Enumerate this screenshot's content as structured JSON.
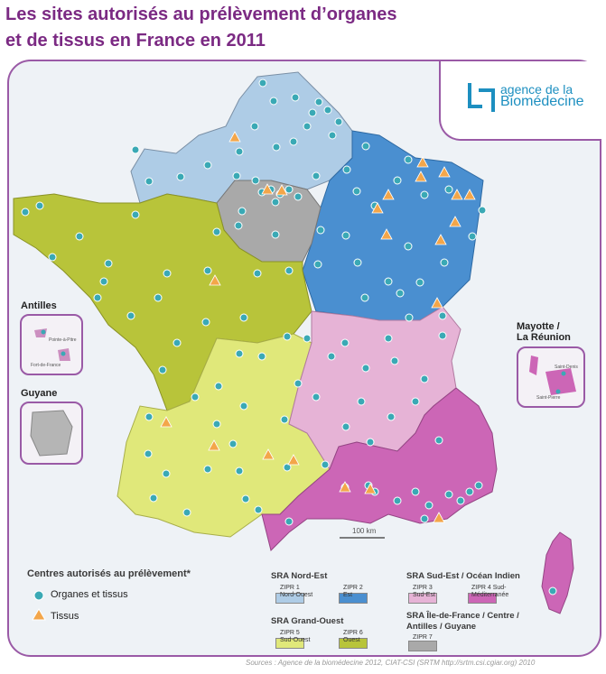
{
  "title_line1": "Les sites autorisés au prélèvement d’organes",
  "title_line2": "et de tissus en France en 2011",
  "logo": {
    "line1": "agence de la",
    "line2": "Biomédecine"
  },
  "insets": {
    "antilles": {
      "title": "Antilles",
      "label1": "Pointe-à-Pitre",
      "label2": "Fort-de-France"
    },
    "guyane": {
      "title": "Guyane"
    },
    "mayotte": {
      "title": "Mayotte / La Réunion",
      "title1": "Mayotte /",
      "title2": "La Réunion",
      "label1": "Saint-Denis",
      "label2": "Saint-Pierre"
    }
  },
  "scale": "100 km",
  "legend": {
    "heading": "Centres autorisés au prélèvement*",
    "organs": "Organes et tissus",
    "tissus": "Tissus",
    "groups": [
      {
        "heading": "SRA Nord-Est",
        "items": [
          {
            "label": "ZIPR 1 Nord-Ouest",
            "l1": "ZIPR 1",
            "l2": "Nord-Ouest",
            "color": "#aecce6"
          },
          {
            "label": "ZIPR 2 Est",
            "l1": "ZIPR 2",
            "l2": "Est",
            "color": "#4a8fd0"
          }
        ]
      },
      {
        "heading": "SRA Sud-Est / Océan Indien",
        "items": [
          {
            "label": "ZIPR 3 Sud-Est",
            "l1": "ZIPR 3",
            "l2": "Sud-Est",
            "color": "#e6b3d6"
          },
          {
            "label": "ZIPR 4 Sud-Méditerranée",
            "l1": "ZIPR 4 Sud-",
            "l2": "Méditerranée",
            "color": "#cc66b6"
          }
        ]
      },
      {
        "heading": "SRA Grand-Ouest",
        "items": [
          {
            "label": "ZIPR 5 Sud-Ouest",
            "l1": "ZIPR 5",
            "l2": "Sud-Ouest",
            "color": "#e0e87a"
          },
          {
            "label": "ZIPR 6 Ouest",
            "l1": "ZIPR 6",
            "l2": "Ouest",
            "color": "#b8c43a"
          }
        ]
      },
      {
        "heading": "SRA Île-de-France / Centre / Antilles / Guyane",
        "heading1": "SRA Île-de-France / Centre /",
        "heading2": "Antilles / Guyane",
        "items": [
          {
            "label": "ZIPR 7",
            "l1": "ZIPR 7",
            "l2": "",
            "color": "#a9a9a9"
          }
        ]
      }
    ]
  },
  "sources": "Sources : Agence de la biomédecine 2012, CIAT-CSI (SRTM http://srtm.csi.cgiar.org) 2010",
  "colors": {
    "organs": "#3aa9b5",
    "tissus": "#f3a64a",
    "frame": "#9a5aa6",
    "title": "#7b2a83"
  }
}
